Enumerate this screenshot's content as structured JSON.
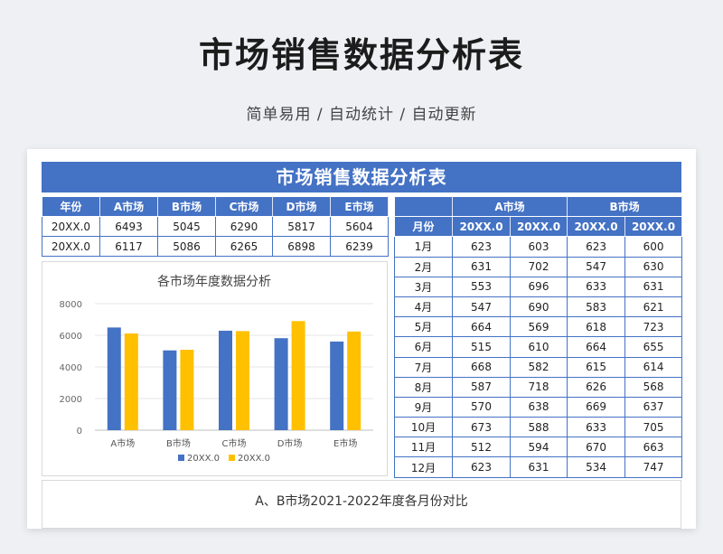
{
  "page": {
    "title": "市场销售数据分析表",
    "subtitle": "简单易用  /  自动统计  /  自动更新"
  },
  "sheet": {
    "banner": "市场销售数据分析表",
    "annual_table": {
      "headers": [
        "年份",
        "A市场",
        "B市场",
        "C市场",
        "D市场",
        "E市场"
      ],
      "rows": [
        [
          "20XX.0",
          "6493",
          "5045",
          "6290",
          "5817",
          "5604"
        ],
        [
          "20XX.0",
          "6117",
          "5086",
          "6265",
          "6898",
          "6239"
        ]
      ]
    },
    "monthly_table": {
      "group_headers": [
        "A市场",
        "B市场"
      ],
      "headers": [
        "月份",
        "20XX.0",
        "20XX.0",
        "20XX.0",
        "20XX.0"
      ],
      "rows": [
        [
          "1月",
          "623",
          "603",
          "623",
          "600"
        ],
        [
          "2月",
          "631",
          "702",
          "547",
          "630"
        ],
        [
          "3月",
          "553",
          "696",
          "633",
          "631"
        ],
        [
          "4月",
          "547",
          "690",
          "583",
          "621"
        ],
        [
          "5月",
          "664",
          "569",
          "618",
          "723"
        ],
        [
          "6月",
          "515",
          "610",
          "664",
          "655"
        ],
        [
          "7月",
          "668",
          "582",
          "615",
          "614"
        ],
        [
          "8月",
          "587",
          "718",
          "626",
          "568"
        ],
        [
          "9月",
          "570",
          "638",
          "669",
          "637"
        ],
        [
          "10月",
          "673",
          "588",
          "633",
          "705"
        ],
        [
          "11月",
          "512",
          "594",
          "670",
          "663"
        ],
        [
          "12月",
          "623",
          "631",
          "534",
          "747"
        ]
      ]
    },
    "caption": "A、B市场2021-2022年度各月份对比"
  },
  "colors": {
    "header_blue": "#4472c4",
    "series_blue": "#4472c4",
    "series_yellow": "#ffc000"
  },
  "chart_data": {
    "type": "bar",
    "title": "各市场年度数据分析",
    "categories": [
      "A市场",
      "B市场",
      "C市场",
      "D市场",
      "E市场"
    ],
    "series": [
      {
        "name": "20XX.0",
        "values": [
          6493,
          5045,
          6290,
          5817,
          5604
        ]
      },
      {
        "name": "20XX.0",
        "values": [
          6117,
          5086,
          6265,
          6898,
          6239
        ]
      }
    ],
    "yticks": [
      "8000",
      "6000",
      "4000",
      "2000",
      "0"
    ],
    "ylim": [
      0,
      8000
    ],
    "grid": true,
    "legend": "bottom"
  }
}
